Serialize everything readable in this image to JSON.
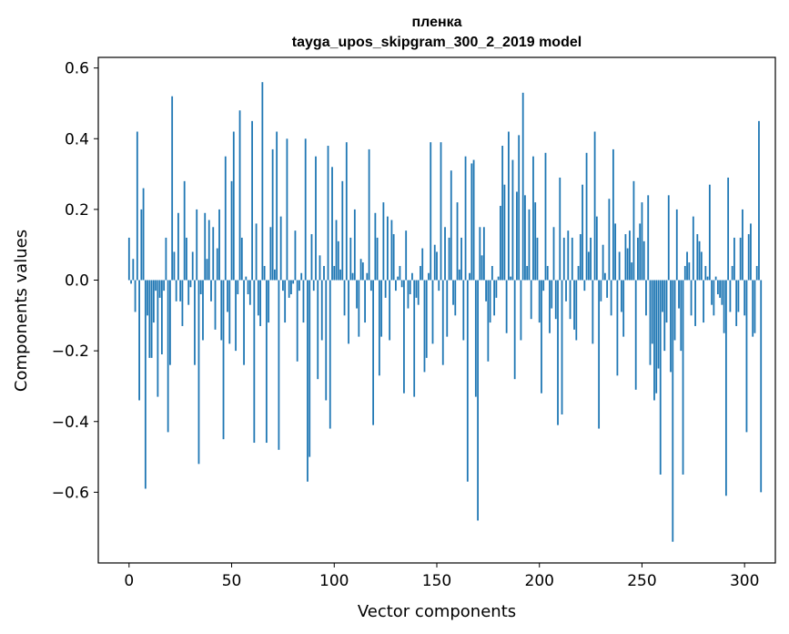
{
  "chart_data": {
    "type": "bar",
    "title_line1": "пленка",
    "title_line2": "tayga_upos_skipgram_300_2_2019 model",
    "xlabel": "Vector components",
    "ylabel": "Components values",
    "xlim": [
      -15,
      315
    ],
    "ylim": [
      -0.8,
      0.63
    ],
    "xticks": [
      0,
      50,
      100,
      150,
      200,
      250,
      300
    ],
    "xtick_labels": [
      "0",
      "50",
      "100",
      "150",
      "200",
      "250",
      "300"
    ],
    "yticks": [
      -0.6,
      -0.4,
      -0.2,
      0.0,
      0.2,
      0.4,
      0.6
    ],
    "ytick_labels": [
      "−0.6",
      "−0.4",
      "−0.2",
      "0.0",
      "0.2",
      "0.4",
      "0.6"
    ],
    "bar_color": "#1f77b4",
    "values": [
      0.12,
      -0.01,
      0.06,
      -0.09,
      0.42,
      -0.34,
      0.2,
      0.26,
      -0.59,
      -0.1,
      -0.22,
      -0.22,
      -0.12,
      -0.03,
      -0.33,
      -0.05,
      -0.21,
      -0.03,
      0.12,
      -0.43,
      -0.24,
      0.52,
      0.08,
      -0.06,
      0.19,
      -0.06,
      -0.13,
      0.28,
      0.12,
      -0.07,
      -0.02,
      0.08,
      -0.24,
      0.2,
      -0.52,
      -0.04,
      -0.17,
      0.19,
      0.06,
      0.17,
      -0.06,
      0.15,
      -0.14,
      0.09,
      0.2,
      -0.17,
      -0.45,
      0.35,
      -0.09,
      -0.18,
      0.28,
      0.42,
      -0.2,
      -0.04,
      0.48,
      0.12,
      -0.24,
      0.01,
      -0.04,
      -0.07,
      0.45,
      -0.46,
      0.16,
      -0.1,
      -0.13,
      0.56,
      0.04,
      -0.46,
      -0.12,
      0.15,
      0.37,
      0.03,
      0.42,
      -0.48,
      0.18,
      -0.03,
      -0.12,
      0.4,
      -0.05,
      -0.04,
      -0.01,
      0.14,
      -0.23,
      -0.03,
      0.02,
      -0.12,
      0.4,
      -0.57,
      -0.5,
      0.13,
      -0.03,
      0.35,
      -0.28,
      0.07,
      -0.17,
      0.04,
      -0.34,
      0.38,
      -0.42,
      0.32,
      0.04,
      0.17,
      0.11,
      0.03,
      0.28,
      -0.1,
      0.39,
      -0.18,
      0.12,
      0.02,
      0.2,
      -0.08,
      -0.16,
      0.06,
      0.05,
      -0.12,
      0.02,
      0.37,
      -0.03,
      -0.41,
      0.19,
      0.12,
      -0.27,
      -0.16,
      0.22,
      -0.05,
      0.18,
      -0.17,
      0.17,
      0.13,
      -0.03,
      0.01,
      0.04,
      -0.02,
      -0.32,
      0.14,
      -0.08,
      -0.04,
      0.02,
      -0.33,
      -0.05,
      -0.07,
      0.04,
      0.09,
      -0.26,
      -0.22,
      0.02,
      0.39,
      -0.18,
      0.1,
      0.08,
      -0.03,
      0.39,
      -0.24,
      0.15,
      -0.16,
      0.12,
      0.31,
      -0.07,
      -0.1,
      0.22,
      0.03,
      0.12,
      -0.17,
      0.35,
      -0.57,
      0.02,
      0.33,
      0.34,
      -0.33,
      -0.68,
      0.15,
      0.07,
      0.15,
      -0.06,
      -0.23,
      -0.12,
      0.04,
      -0.1,
      -0.05,
      0.01,
      0.21,
      0.38,
      0.27,
      -0.15,
      0.42,
      0.01,
      0.34,
      -0.28,
      0.25,
      0.41,
      -0.17,
      0.53,
      0.24,
      0.04,
      0.2,
      -0.11,
      0.35,
      0.22,
      0.12,
      -0.12,
      -0.32,
      -0.03,
      0.36,
      0.04,
      -0.15,
      -0.08,
      0.15,
      -0.11,
      -0.41,
      0.29,
      -0.38,
      0.12,
      -0.06,
      0.14,
      -0.11,
      0.12,
      -0.14,
      -0.17,
      0.04,
      0.13,
      0.27,
      -0.03,
      0.36,
      0.08,
      0.12,
      -0.18,
      0.42,
      0.18,
      -0.42,
      -0.06,
      0.1,
      0.02,
      -0.05,
      0.23,
      -0.1,
      0.37,
      0.16,
      -0.27,
      0.08,
      -0.09,
      -0.16,
      0.13,
      0.09,
      0.14,
      0.05,
      0.28,
      -0.31,
      0.12,
      0.16,
      0.22,
      0.11,
      -0.1,
      0.24,
      -0.24,
      -0.18,
      -0.34,
      -0.32,
      -0.25,
      -0.55,
      -0.09,
      -0.2,
      -0.12,
      0.24,
      -0.26,
      -0.74,
      -0.17,
      0.2,
      -0.08,
      -0.2,
      -0.55,
      0.04,
      0.08,
      0.05,
      -0.1,
      0.18,
      -0.13,
      0.13,
      0.11,
      0.08,
      -0.12,
      0.04,
      0.01,
      0.27,
      -0.07,
      -0.1,
      0.01,
      -0.04,
      -0.05,
      -0.07,
      -0.15,
      -0.61,
      0.29,
      -0.09,
      0.04,
      0.12,
      -0.13,
      -0.09,
      0.12,
      0.2,
      -0.1,
      -0.43,
      0.13,
      0.16,
      -0.16,
      -0.15,
      0.04,
      0.45,
      -0.6
    ]
  }
}
